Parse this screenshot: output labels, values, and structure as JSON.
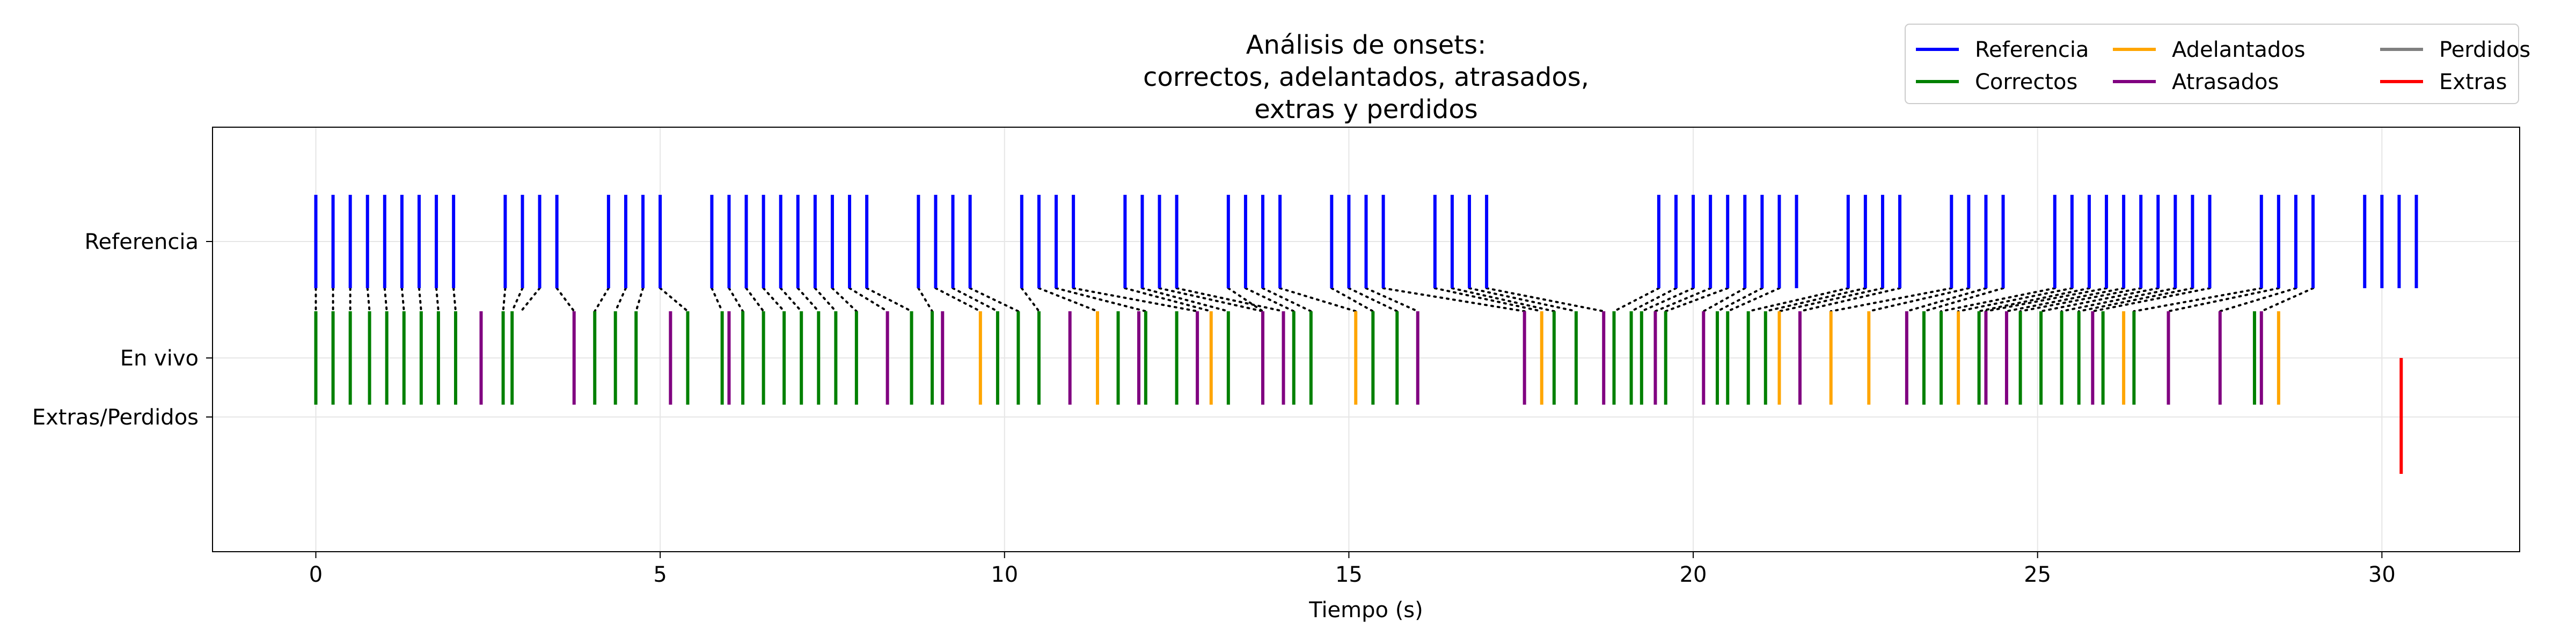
{
  "chart_data": {
    "type": "eventplot",
    "title_lines": [
      "Análisis de onsets:",
      "correctos, adelantados, atrasados,",
      "extras y perdidos"
    ],
    "xlabel": "Tiempo (s)",
    "xlim": [
      -1.5,
      32
    ],
    "xticks": [
      0,
      5,
      10,
      15,
      20,
      25,
      30
    ],
    "yticks": [
      {
        "label": "Referencia",
        "level": 1.0
      },
      {
        "label": "En vivo",
        "level": 0.0
      },
      {
        "label": "Extras/Perdidos",
        "level": -0.5
      }
    ],
    "grid": true,
    "legend": {
      "placement": "top-right",
      "ncol": 3,
      "entries": [
        {
          "label": "Referencia",
          "color": "#0000ff"
        },
        {
          "label": "Correctos",
          "color": "#008000"
        },
        {
          "label": "Adelantados",
          "color": "#ffa500"
        },
        {
          "label": "Atrasados",
          "color": "#800080"
        },
        {
          "label": "Perdidos",
          "color": "#808080"
        },
        {
          "label": "Extras",
          "color": "#ff0000"
        }
      ]
    },
    "series": [
      {
        "name": "Referencia",
        "color": "#0000ff",
        "level": 1.0,
        "x": [
          0.0,
          0.25,
          0.5,
          0.75,
          1.0,
          1.25,
          1.5,
          1.75,
          2.0,
          2.75,
          3.0,
          3.25,
          3.5,
          4.25,
          4.5,
          4.75,
          5.0,
          5.75,
          6.0,
          6.25,
          6.5,
          6.75,
          7.0,
          7.25,
          7.5,
          7.75,
          8.0,
          8.75,
          9.0,
          9.25,
          9.5,
          10.25,
          10.5,
          10.75,
          11.0,
          11.75,
          12.0,
          12.25,
          12.5,
          13.25,
          13.5,
          13.75,
          14.0,
          14.75,
          15.0,
          15.25,
          15.5,
          16.25,
          16.5,
          16.75,
          17.0,
          19.5,
          19.75,
          20.0,
          20.25,
          20.5,
          20.75,
          21.0,
          21.25,
          21.5,
          22.25,
          22.5,
          22.75,
          23.0,
          23.75,
          24.0,
          24.25,
          24.5,
          25.25,
          25.5,
          25.75,
          26.0,
          26.25,
          26.5,
          26.75,
          27.0,
          27.25,
          27.5,
          28.25,
          28.5,
          28.75,
          29.0,
          29.75,
          30.0,
          30.25,
          30.5
        ]
      },
      {
        "name": "Correctos",
        "color": "#008000",
        "level": 0.0,
        "x": [
          0.0,
          0.25,
          0.5,
          0.78,
          1.03,
          1.28,
          1.53,
          1.78,
          2.03,
          2.72,
          2.85,
          4.05,
          4.35,
          4.65,
          5.4,
          5.9,
          6.2,
          6.5,
          6.8,
          7.05,
          7.3,
          7.55,
          7.85,
          8.65,
          8.95,
          9.9,
          10.2,
          10.5,
          11.65,
          12.05,
          12.5,
          13.25,
          14.2,
          14.45,
          15.35,
          15.7,
          17.98,
          18.3,
          18.85,
          19.1,
          19.25,
          19.6,
          20.35,
          20.5,
          20.8,
          21.05,
          23.35,
          23.6,
          24.15,
          24.75,
          25.05,
          25.35,
          25.6,
          25.95,
          26.4,
          28.15
        ]
      },
      {
        "name": "Adelantados",
        "color": "#ffa500",
        "level": 0.0,
        "x": [
          9.65,
          11.35,
          13.0,
          13.75,
          15.1,
          17.8,
          21.25,
          22.0,
          22.55,
          23.85,
          26.25,
          28.5
        ]
      },
      {
        "name": "Atrasados",
        "color": "#800080",
        "level": 0.0,
        "x": [
          2.4,
          3.75,
          5.15,
          6.0,
          8.3,
          9.1,
          10.95,
          11.95,
          12.8,
          13.75,
          14.05,
          16.0,
          17.55,
          18.7,
          19.45,
          20.15,
          21.55,
          23.1,
          24.25,
          24.55,
          25.8,
          26.9,
          27.65,
          28.25
        ]
      },
      {
        "name": "Extras",
        "color": "#ff0000",
        "level": -0.5,
        "x": [
          30.28
        ]
      }
    ],
    "matches": [
      [
        0.0,
        0.0
      ],
      [
        0.25,
        0.25
      ],
      [
        0.5,
        0.5
      ],
      [
        0.75,
        0.78
      ],
      [
        1.0,
        1.03
      ],
      [
        1.25,
        1.28
      ],
      [
        1.5,
        1.53
      ],
      [
        1.75,
        1.78
      ],
      [
        2.0,
        2.03
      ],
      [
        2.75,
        2.72
      ],
      [
        3.0,
        2.85
      ],
      [
        3.25,
        2.98
      ],
      [
        3.5,
        3.75
      ],
      [
        4.25,
        4.05
      ],
      [
        4.5,
        4.35
      ],
      [
        4.75,
        4.65
      ],
      [
        5.0,
        5.4
      ],
      [
        5.75,
        5.9
      ],
      [
        6.0,
        6.2
      ],
      [
        6.25,
        6.5
      ],
      [
        6.5,
        6.8
      ],
      [
        6.75,
        7.05
      ],
      [
        7.0,
        7.3
      ],
      [
        7.25,
        7.55
      ],
      [
        7.5,
        7.85
      ],
      [
        7.75,
        8.3
      ],
      [
        8.0,
        8.65
      ],
      [
        8.75,
        8.95
      ],
      [
        9.0,
        9.65
      ],
      [
        9.25,
        9.9
      ],
      [
        9.5,
        10.2
      ],
      [
        10.25,
        10.5
      ],
      [
        10.5,
        11.35
      ],
      [
        10.75,
        12.05
      ],
      [
        11.0,
        12.8
      ],
      [
        11.75,
        13.0
      ],
      [
        12.0,
        13.25
      ],
      [
        12.25,
        13.75
      ],
      [
        12.5,
        14.05
      ],
      [
        13.25,
        13.75
      ],
      [
        13.5,
        14.2
      ],
      [
        13.75,
        14.45
      ],
      [
        14.0,
        15.1
      ],
      [
        14.75,
        15.35
      ],
      [
        15.0,
        15.7
      ],
      [
        15.25,
        16.0
      ],
      [
        15.5,
        17.55
      ],
      [
        16.25,
        17.8
      ],
      [
        16.5,
        17.98
      ],
      [
        16.75,
        18.3
      ],
      [
        17.0,
        18.7
      ],
      [
        19.5,
        18.85
      ],
      [
        19.75,
        19.1
      ],
      [
        20.0,
        19.25
      ],
      [
        20.25,
        19.45
      ],
      [
        20.5,
        19.6
      ],
      [
        20.75,
        20.15
      ],
      [
        21.0,
        20.35
      ],
      [
        21.25,
        20.5
      ],
      [
        22.25,
        20.8
      ],
      [
        22.5,
        21.05
      ],
      [
        22.75,
        21.25
      ],
      [
        23.0,
        21.55
      ],
      [
        23.75,
        22.0
      ],
      [
        24.0,
        22.55
      ],
      [
        24.25,
        23.1
      ],
      [
        24.5,
        23.35
      ],
      [
        25.25,
        23.6
      ],
      [
        25.5,
        23.85
      ],
      [
        25.75,
        24.15
      ],
      [
        26.0,
        24.25
      ],
      [
        26.25,
        24.55
      ],
      [
        26.5,
        24.75
      ],
      [
        26.75,
        25.05
      ],
      [
        27.0,
        25.35
      ],
      [
        27.25,
        25.6
      ],
      [
        27.5,
        25.8
      ],
      [
        28.25,
        26.4
      ],
      [
        28.5,
        26.9
      ],
      [
        28.75,
        27.65
      ],
      [
        29.0,
        28.25
      ]
    ]
  }
}
